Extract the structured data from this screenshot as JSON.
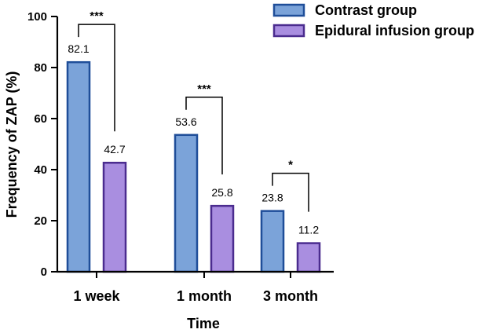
{
  "chart_data": {
    "type": "bar",
    "title": "",
    "xlabel": "Time",
    "ylabel": "Frequency of ZAP (%)",
    "ylim": [
      0,
      100
    ],
    "yticks": [
      0,
      20,
      40,
      60,
      80,
      100
    ],
    "grid": false,
    "legend_position": "top-right",
    "categories": [
      "1 week",
      "1 month",
      "3 month"
    ],
    "series": [
      {
        "name": "Contrast group",
        "values": [
          82.1,
          53.6,
          23.8
        ],
        "value_labels": [
          "82.1",
          "53.6",
          "23.8"
        ],
        "fill": "#7ba3d9",
        "stroke": "#1f4e99"
      },
      {
        "name": "Epidural infusion group",
        "values": [
          42.7,
          25.8,
          11.2
        ],
        "value_labels": [
          "42.7",
          "25.8",
          "11.2"
        ],
        "fill": "#a98ee0",
        "stroke": "#4b2c8f"
      }
    ],
    "significance": [
      "***",
      "***",
      "*"
    ]
  }
}
